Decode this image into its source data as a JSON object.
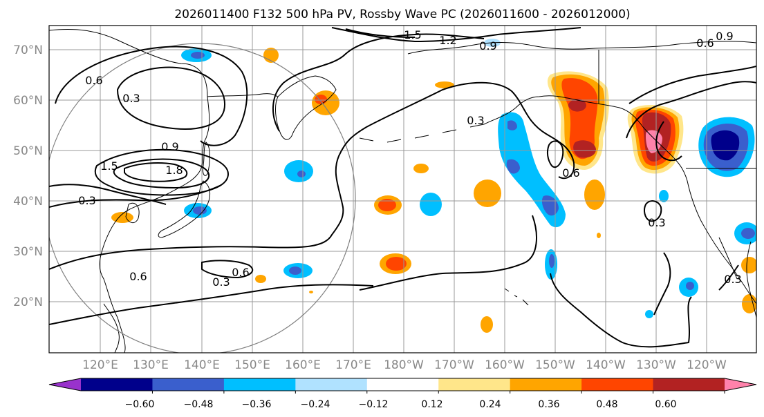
{
  "title": "2026011400 F132 500 hPa PV, Rossby Wave PC (2026011600 - 2026012000)",
  "map": {
    "lat_labels": [
      "70°N",
      "60°N",
      "50°N",
      "40°N",
      "30°N",
      "20°N"
    ],
    "lon_labels": [
      "120°E",
      "130°E",
      "140°E",
      "150°E",
      "160°E",
      "170°E",
      "180°W",
      "170°W",
      "160°W",
      "150°W",
      "140°W",
      "130°W",
      "120°W"
    ],
    "contour_labels": [
      "1.5",
      "1.2",
      "0.9",
      "0.6",
      "0.6",
      "0.3",
      "0.9",
      "1.5",
      "1.8",
      "0.6",
      "0.3",
      "0.3",
      "0.6",
      "0.6",
      "0.3",
      "0.3",
      "0.9",
      "0.3"
    ],
    "colors": {
      "contour": "#000000",
      "grid": "#999999",
      "coast": "#000000",
      "neg_strong": "#00008b",
      "neg_mid": "#3a5fcd",
      "neg_light": "#00bfff",
      "neg_pale": "#b0e2ff",
      "pos_pale": "#ffe68a",
      "pos_light": "#ffa500",
      "pos_mid": "#ff4500",
      "pos_strong": "#b22222",
      "pos_max": "#ff82ab"
    }
  },
  "colorbar": {
    "segments": [
      "#9932cc",
      "#00008b",
      "#3a5fcd",
      "#00bfff",
      "#b0e2ff",
      "#ffffff",
      "#ffe68a",
      "#ffa500",
      "#ff4500",
      "#b22222",
      "#ff82ab"
    ],
    "tick_labels": [
      "−0.60",
      "−0.48",
      "−0.36",
      "−0.24",
      "−0.12",
      "0.12",
      "0.24",
      "0.36",
      "0.48",
      "0.60"
    ]
  }
}
